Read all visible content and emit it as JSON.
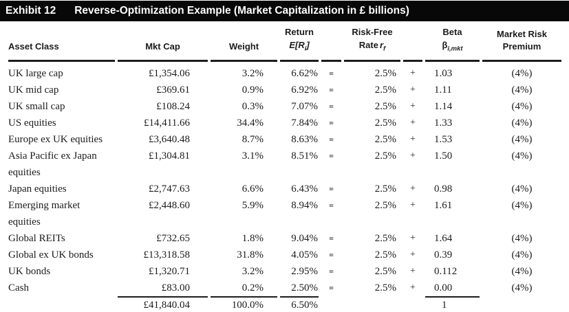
{
  "exhibit": {
    "label": "Exhibit 12",
    "title": "Reverse-Optimization Example (Market Capitalization in £ billions)"
  },
  "colors": {
    "title_bar_bg": "#080808",
    "title_bar_text": "#ffffff",
    "body_text": "#1b1b1b",
    "rule": "#1c1c1c",
    "page_bg": "#ffffff"
  },
  "table": {
    "headers": {
      "asset_class": "Asset Class",
      "mkt_cap": "Mkt Cap",
      "weight": "Weight",
      "return_label": "Return",
      "return_formula_pre": "E[R",
      "return_formula_sub": "i",
      "return_formula_post": "]",
      "risk_free_label": "Risk-Free",
      "risk_free_rate_word": "Rate",
      "risk_free_var": "r",
      "risk_free_var_sub": "f",
      "beta_label": "Beta",
      "beta_symbol": "β",
      "beta_symbol_sub": "i,mkt",
      "market_risk_label": "Market Risk",
      "market_risk_label2": "Premium"
    },
    "rows": [
      {
        "asset": "UK large cap",
        "mkt_cap": "£1,354.06",
        "weight": "3.2%",
        "ret": "6.62%",
        "eq": "=",
        "rf": "2.5%",
        "plus": "+",
        "beta": "1.03",
        "mrp": "(4%)"
      },
      {
        "asset": "UK mid cap",
        "mkt_cap": "£369.61",
        "weight": "0.9%",
        "ret": "6.92%",
        "eq": "=",
        "rf": "2.5%",
        "plus": "+",
        "beta": "1.11",
        "mrp": "(4%)"
      },
      {
        "asset": "UK small cap",
        "mkt_cap": "£108.24",
        "weight": "0.3%",
        "ret": "7.07%",
        "eq": "=",
        "rf": "2.5%",
        "plus": "+",
        "beta": "1.14",
        "mrp": "(4%)"
      },
      {
        "asset": "US equities",
        "mkt_cap": "£14,411.66",
        "weight": "34.4%",
        "ret": "7.84%",
        "eq": "=",
        "rf": "2.5%",
        "plus": "+",
        "beta": "1.33",
        "mrp": "(4%)"
      },
      {
        "asset": "Europe ex UK equities",
        "mkt_cap": "£3,640.48",
        "weight": "8.7%",
        "ret": "8.63%",
        "eq": "=",
        "rf": "2.5%",
        "plus": "+",
        "beta": "1.53",
        "mrp": "(4%)"
      },
      {
        "asset": "Asia Pacific ex Japan\nequities",
        "mkt_cap": "£1,304.81",
        "weight": "3.1%",
        "ret": "8.51%",
        "eq": "=",
        "rf": "2.5%",
        "plus": "+",
        "beta": "1.50",
        "mrp": "(4%)"
      },
      {
        "asset": "Japan equities",
        "mkt_cap": "£2,747.63",
        "weight": "6.6%",
        "ret": "6.43%",
        "eq": "=",
        "rf": "2.5%",
        "plus": "+",
        "beta": "0.98",
        "mrp": "(4%)"
      },
      {
        "asset": "Emerging market\nequities",
        "mkt_cap": "£2,448.60",
        "weight": "5.9%",
        "ret": "8.94%",
        "eq": "=",
        "rf": "2.5%",
        "plus": "+",
        "beta": "1.61",
        "mrp": "(4%)"
      },
      {
        "asset": "Global REITs",
        "mkt_cap": "£732.65",
        "weight": "1.8%",
        "ret": "9.04%",
        "eq": "=",
        "rf": "2.5%",
        "plus": "+",
        "beta": "1.64",
        "mrp": "(4%)"
      },
      {
        "asset": "Global ex UK bonds",
        "mkt_cap": "£13,318.58",
        "weight": "31.8%",
        "ret": "4.05%",
        "eq": "=",
        "rf": "2.5%",
        "plus": "+",
        "beta": "0.39",
        "mrp": "(4%)"
      },
      {
        "asset": "UK bonds",
        "mkt_cap": "£1,320.71",
        "weight": "3.2%",
        "ret": "2.95%",
        "eq": "=",
        "rf": "2.5%",
        "plus": "+",
        "beta": "0.112",
        "mrp": "(4%)"
      },
      {
        "asset": "Cash",
        "mkt_cap": "£83.00",
        "weight": "0.2%",
        "ret": "2.50%",
        "eq": "=",
        "rf": "2.5%",
        "plus": "+",
        "beta": "0.00",
        "mrp": "(4%)"
      }
    ],
    "total": {
      "mkt_cap": "£41,840.04",
      "weight": "100.0%",
      "ret": "6.50%",
      "beta": "1"
    }
  }
}
